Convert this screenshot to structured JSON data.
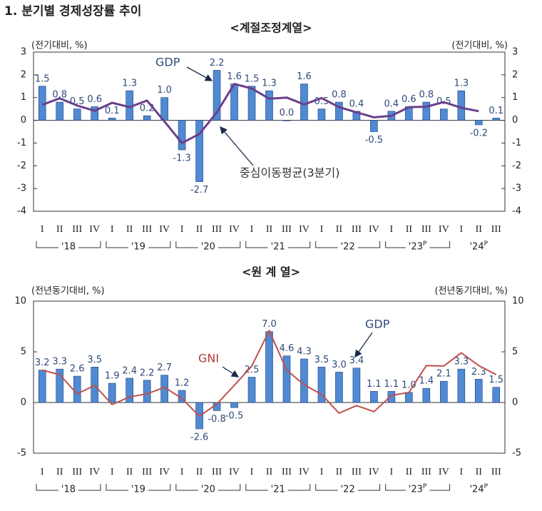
{
  "page_title": "1. 분기별 경제성장률 추이",
  "chart_data": [
    {
      "type": "combo",
      "title": "<계절조정계열>",
      "y_label": "(전기대비, %)",
      "categories": [
        "I",
        "II",
        "III",
        "IV",
        "I",
        "II",
        "III",
        "IV",
        "I",
        "II",
        "III",
        "IV",
        "I",
        "II",
        "III",
        "IV",
        "I",
        "II",
        "III",
        "IV",
        "I",
        "II",
        "III",
        "IV",
        "I",
        "II",
        "III"
      ],
      "year_groups": [
        {
          "label": "'18"
        },
        {
          "label": "'19"
        },
        {
          "label": "'20"
        },
        {
          "label": "'21"
        },
        {
          "label": "'22"
        },
        {
          "label": "'23",
          "preliminary": true
        },
        {
          "label": "'24",
          "preliminary": true
        }
      ],
      "preliminary_marker": "P",
      "ylim": [
        -4,
        3
      ],
      "yticks": [
        -4,
        -3,
        -2,
        -1,
        0,
        1,
        2,
        3
      ],
      "series": [
        {
          "name": "GDP",
          "type": "bar",
          "color": "#4f8ad3",
          "values": [
            1.5,
            0.8,
            0.5,
            0.6,
            0.1,
            1.3,
            0.2,
            1.0,
            -1.3,
            -2.7,
            2.2,
            1.6,
            1.5,
            1.3,
            0.0,
            1.6,
            0.5,
            0.8,
            0.4,
            -0.5,
            0.4,
            0.6,
            0.8,
            0.5,
            1.3,
            -0.2,
            0.1
          ],
          "value_labels": [
            "1.5",
            "0.8",
            "0.5",
            "0.6",
            "0.1",
            "1.3",
            "0.2",
            "1.0",
            "-1.3",
            "-2.7",
            "2.2",
            "1.6",
            "1.5",
            "1.3",
            "0.0",
            "1.6",
            "0.5",
            "0.8",
            "0.4",
            "-0.5",
            "0.4",
            "0.6",
            "0.8",
            "0.5",
            "1.3",
            "-0.2",
            "0.1"
          ]
        },
        {
          "name": "중심이동평균(3분기)",
          "type": "line",
          "color": "#6b3f8a",
          "values": [
            0.68,
            0.97,
            0.65,
            0.42,
            0.77,
            0.58,
            0.87,
            -0.05,
            -1.0,
            -0.6,
            0.35,
            1.6,
            1.4,
            0.95,
            1.0,
            0.7,
            0.98,
            0.58,
            0.35,
            0.13,
            0.2,
            0.58,
            0.6,
            0.8,
            0.55,
            0.4,
            null
          ]
        }
      ]
    },
    {
      "type": "combo",
      "title": "<원 계 열>",
      "y_label": "(전년동기대비, %)",
      "categories": [
        "I",
        "II",
        "III",
        "IV",
        "I",
        "II",
        "III",
        "IV",
        "I",
        "II",
        "III",
        "IV",
        "I",
        "II",
        "III",
        "IV",
        "I",
        "II",
        "III",
        "IV",
        "I",
        "II",
        "III",
        "IV",
        "I",
        "II",
        "III"
      ],
      "year_groups": [
        {
          "label": "'18"
        },
        {
          "label": "'19"
        },
        {
          "label": "'20"
        },
        {
          "label": "'21"
        },
        {
          "label": "'22"
        },
        {
          "label": "'23",
          "preliminary": true
        },
        {
          "label": "'24",
          "preliminary": true
        }
      ],
      "preliminary_marker": "P",
      "ylim": [
        -5,
        10
      ],
      "yticks": [
        -5,
        0,
        5,
        10
      ],
      "series": [
        {
          "name": "GDP",
          "type": "bar",
          "color": "#4f8ad3",
          "values": [
            3.2,
            3.3,
            2.6,
            3.5,
            1.9,
            2.4,
            2.2,
            2.7,
            1.2,
            -2.6,
            -0.8,
            -0.5,
            2.5,
            7.0,
            4.6,
            4.3,
            3.5,
            3.0,
            3.4,
            1.1,
            1.1,
            1.0,
            1.4,
            2.1,
            3.3,
            2.3,
            1.5
          ],
          "value_labels": [
            "3.2",
            "3.3",
            "2.6",
            "3.5",
            "1.9",
            "2.4",
            "2.2",
            "2.7",
            "1.2",
            "-2.6",
            "-0.8",
            "-0.5",
            "2.5",
            "7.0",
            "4.6",
            "4.3",
            "3.5",
            "3.0",
            "3.4",
            "1.1",
            "1.1",
            "1.0",
            "1.4",
            "2.1",
            "3.3",
            "2.3",
            "1.5"
          ]
        },
        {
          "name": "GNI",
          "type": "line",
          "color": "#c0504d",
          "values": [
            3.2,
            2.75,
            0.85,
            1.7,
            -0.2,
            0.55,
            0.85,
            1.5,
            0.4,
            -1.35,
            -0.15,
            1.7,
            3.6,
            7.1,
            3.2,
            1.75,
            0.8,
            -1.05,
            -0.3,
            -0.9,
            0.7,
            1.0,
            3.65,
            3.6,
            4.9,
            3.65,
            2.75
          ]
        }
      ]
    }
  ]
}
